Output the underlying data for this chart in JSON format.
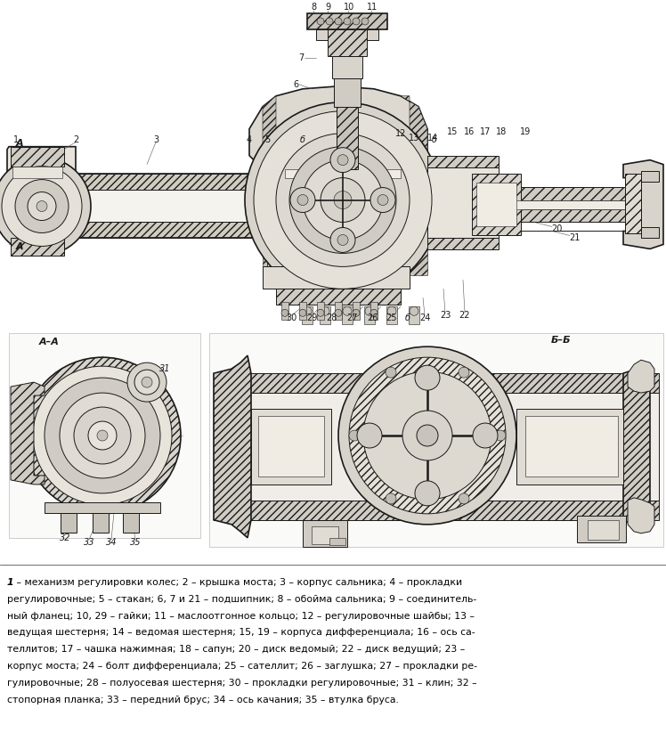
{
  "bg_color": "#ffffff",
  "drawing_bg": "#f0ece4",
  "fig_width": 7.48,
  "fig_height": 8.23,
  "dpi": 100,
  "caption_line1_bold": "1",
  "caption_line1_rest": " – механизм регулировки колес; 2 – крышка моста; 3 – корпус сальника; 4 – прокладки",
  "caption_line2": "регулировочные; 5 – стакан; 6, 7 и 21 – подшипник; 8 – обойма сальника; 9 – соединитель-",
  "caption_line3": "ный фланец; 10, 29 – гайки; 11 – маслоотгонное кольцо; 12 – регулировочные шайбы; 13 –",
  "caption_line4": "ведущая шестерня; 14 – ведомая шестерня; 15, 19 – корпуса дифференциала; 16 – ось са-",
  "caption_line5": "теллитов; 17 – чашка нажимная; 18 – сапун; 20 – диск ведомый; 22 – диск ведущий; 23 –",
  "caption_line6": "корпус моста; 24 – болт дифференциала; 25 – сателлит; 26 – заглушка; 27 – прокладки ре-",
  "caption_line7": "гулировочные; 28 – полуосевая шестерня; 30 – прокладки регулировочные; 31 – клин; 32 –",
  "caption_line8": "стопорная планка; 33 – передний брус; 34 – ось качания; 35 – втулка бруса."
}
